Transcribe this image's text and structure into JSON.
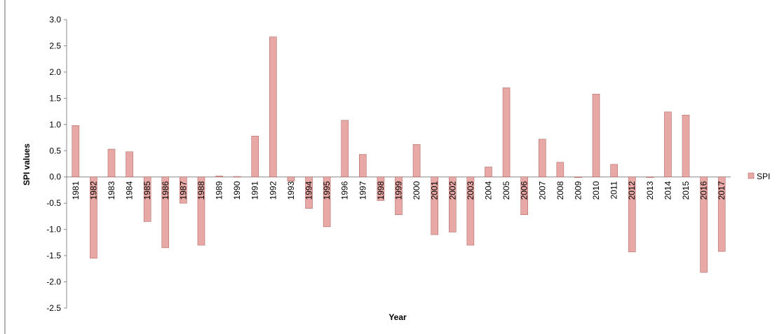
{
  "chart_data": {
    "type": "bar",
    "title": "",
    "xlabel": "Year",
    "ylabel": "SPI values",
    "ylim": [
      -2.5,
      3.0
    ],
    "yticks": [
      "3.0",
      "2.5",
      "2.0",
      "1.5",
      "1.0",
      "0.5",
      "0.0",
      "-0.5",
      "-1.0",
      "-1.5",
      "-2.0",
      "-2.5"
    ],
    "legend_position": "right",
    "bar_color": "#e8a9a6",
    "bar_edge_color": "#b06a66",
    "categories": [
      "1981",
      "1982",
      "1983",
      "1984",
      "1985",
      "1986",
      "1987",
      "1988",
      "1989",
      "1990",
      "1991",
      "1992",
      "1993",
      "1994",
      "1995",
      "1996",
      "1997",
      "1998",
      "1999",
      "2000",
      "2001",
      "2002",
      "2003",
      "2004",
      "2005",
      "2006",
      "2007",
      "2008",
      "2009",
      "2010",
      "2011",
      "2012",
      "2013",
      "2014",
      "2015",
      "2016",
      "2017"
    ],
    "series": [
      {
        "name": "SPI",
        "values": [
          0.98,
          -1.55,
          0.53,
          0.48,
          -0.85,
          -1.35,
          -0.5,
          -1.3,
          0.02,
          0.01,
          0.78,
          2.67,
          -0.08,
          -0.6,
          -0.95,
          1.08,
          0.43,
          -0.45,
          -0.72,
          0.62,
          -1.1,
          -1.05,
          -1.3,
          0.19,
          1.7,
          -0.72,
          0.72,
          0.28,
          -0.01,
          1.58,
          0.24,
          -1.43,
          -0.01,
          1.24,
          1.18,
          -1.82,
          -1.42
        ]
      }
    ]
  }
}
